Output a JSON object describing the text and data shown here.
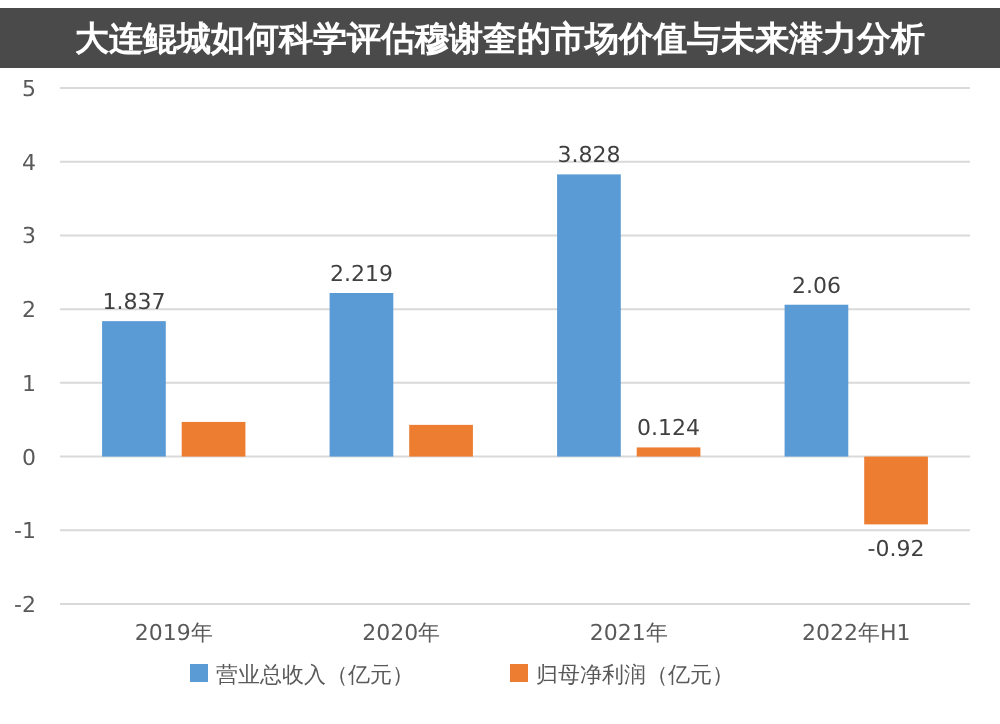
{
  "chart_data": {
    "type": "bar",
    "title": "大连鲲城如何科学评估穆谢奎的市场价值与未来潜力分析",
    "categories": [
      "2019年",
      "2020年",
      "2021年",
      "2022年H1"
    ],
    "series": [
      {
        "name": "营业总收入（亿元）",
        "color": "#5b9bd5",
        "values": [
          1.837,
          2.219,
          3.828,
          2.06
        ],
        "value_labels": [
          "1.837",
          "2.219",
          "3.828",
          "2.06"
        ]
      },
      {
        "name": "归母净利润（亿元）",
        "color": "#ed7d31",
        "values": [
          0.47,
          0.43,
          0.124,
          -0.92
        ],
        "value_labels": [
          null,
          null,
          "0.124",
          "-0.92"
        ]
      }
    ],
    "ylim": [
      -2,
      5
    ],
    "yticks": [
      -2,
      -1,
      0,
      1,
      2,
      3,
      4,
      5
    ],
    "grid": "y",
    "legend": "bottom"
  }
}
